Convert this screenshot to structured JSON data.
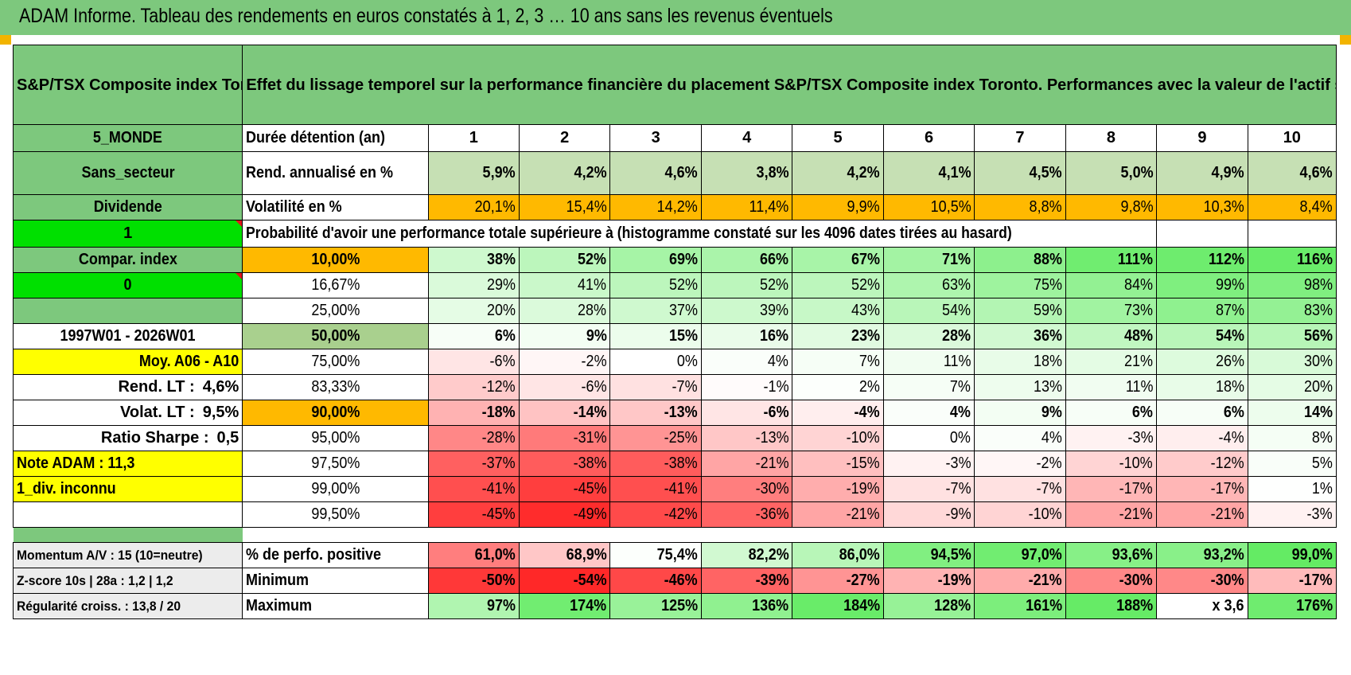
{
  "title": "ADAM Informe. Tableau des rendements en euros constatés à 1, 2, 3 … 10 ans sans les revenus éventuels",
  "header": {
    "index_name": "S&P/TSX Composite index Toronto",
    "description": "Effet du lissage temporel sur la performance financière du placement S&P/TSX Composite index Toronto. Performances avec la valeur de l'actif sans prise en compte des revenus."
  },
  "side": {
    "zone": "5_MONDE",
    "sector": "Sans_secteur",
    "dividend_label": "Dividende",
    "dividend_flag": "1",
    "compar_label": "Compar. index",
    "compar_flag": "0",
    "period": "1997W01 - 2026W01",
    "avg_label": "Moy. A06 - A10",
    "rend_lt_label": "Rend. LT :",
    "rend_lt_value": "4,6%",
    "volat_lt_label": "Volat. LT :",
    "volat_lt_value": "9,5%",
    "sharpe_label": "Ratio Sharpe :",
    "sharpe_value": "0,5",
    "note_adam": "Note ADAM : 11,3",
    "div_status": "1_div. inconnu"
  },
  "table": {
    "duration_label": "Durée détention (an)",
    "years": [
      "1",
      "2",
      "3",
      "4",
      "5",
      "6",
      "7",
      "8",
      "9",
      "10"
    ],
    "rend_label": "Rend. annualisé en %",
    "rend": [
      "5,9%",
      "4,2%",
      "4,6%",
      "3,8%",
      "4,2%",
      "4,1%",
      "4,5%",
      "5,0%",
      "4,9%",
      "4,6%"
    ],
    "vol_label": "Volatilité en %",
    "vol": [
      "20,1%",
      "15,4%",
      "14,2%",
      "11,4%",
      "9,9%",
      "10,5%",
      "8,8%",
      "9,8%",
      "10,3%",
      "8,4%"
    ],
    "prob_title": "Probabilité d'avoir une performance totale supérieure à (histogramme constaté sur les 4096 dates tirées au hasard)",
    "prob_rows": [
      {
        "pct": "10,00%",
        "values": [
          "38%",
          "52%",
          "69%",
          "66%",
          "67%",
          "71%",
          "88%",
          "111%",
          "112%",
          "116%"
        ]
      },
      {
        "pct": "16,67%",
        "values": [
          "29%",
          "41%",
          "52%",
          "52%",
          "52%",
          "63%",
          "75%",
          "84%",
          "99%",
          "98%"
        ]
      },
      {
        "pct": "25,00%",
        "values": [
          "20%",
          "28%",
          "37%",
          "39%",
          "43%",
          "54%",
          "59%",
          "73%",
          "87%",
          "83%"
        ]
      },
      {
        "pct": "50,00%",
        "values": [
          "6%",
          "9%",
          "15%",
          "16%",
          "23%",
          "28%",
          "36%",
          "48%",
          "54%",
          "56%"
        ]
      },
      {
        "pct": "75,00%",
        "values": [
          "-6%",
          "-2%",
          "0%",
          "4%",
          "7%",
          "11%",
          "18%",
          "21%",
          "26%",
          "30%"
        ]
      },
      {
        "pct": "83,33%",
        "values": [
          "-12%",
          "-6%",
          "-7%",
          "-1%",
          "2%",
          "7%",
          "13%",
          "11%",
          "18%",
          "20%"
        ]
      },
      {
        "pct": "90,00%",
        "values": [
          "-18%",
          "-14%",
          "-13%",
          "-6%",
          "-4%",
          "4%",
          "9%",
          "6%",
          "6%",
          "14%"
        ]
      },
      {
        "pct": "95,00%",
        "values": [
          "-28%",
          "-31%",
          "-25%",
          "-13%",
          "-10%",
          "0%",
          "4%",
          "-3%",
          "-4%",
          "8%"
        ]
      },
      {
        "pct": "97,50%",
        "values": [
          "-37%",
          "-38%",
          "-38%",
          "-21%",
          "-15%",
          "-3%",
          "-2%",
          "-10%",
          "-12%",
          "5%"
        ]
      },
      {
        "pct": "99,00%",
        "values": [
          "-41%",
          "-45%",
          "-41%",
          "-30%",
          "-19%",
          "-7%",
          "-7%",
          "-17%",
          "-17%",
          "1%"
        ]
      },
      {
        "pct": "99,50%",
        "values": [
          "-45%",
          "-49%",
          "-42%",
          "-36%",
          "-21%",
          "-9%",
          "-10%",
          "-21%",
          "-21%",
          "-3%"
        ]
      }
    ],
    "summary_rows": [
      {
        "side": "Momentum A/V : 15 (10=neutre)",
        "label": "% de perfo. positive",
        "values": [
          "61,0%",
          "68,9%",
          "75,4%",
          "82,2%",
          "86,0%",
          "94,5%",
          "97,0%",
          "93,6%",
          "93,2%",
          "99,0%"
        ]
      },
      {
        "side": "Z-score 10s | 28a : 1,2 | 1,2",
        "label": "Minimum",
        "values": [
          "-50%",
          "-54%",
          "-46%",
          "-39%",
          "-27%",
          "-19%",
          "-21%",
          "-30%",
          "-30%",
          "-17%"
        ]
      },
      {
        "side": "Régularité croiss. : 13,8 / 20",
        "label": "Maximum",
        "values": [
          "97%",
          "174%",
          "125%",
          "136%",
          "184%",
          "128%",
          "161%",
          "188%",
          "x 3,6",
          "176%"
        ]
      }
    ]
  },
  "colors": {
    "header_green": "#7dc87d",
    "bright_green": "#00e000",
    "yellow": "#ffff00",
    "orange": "#ffb900",
    "red_text": "#e0141e"
  }
}
